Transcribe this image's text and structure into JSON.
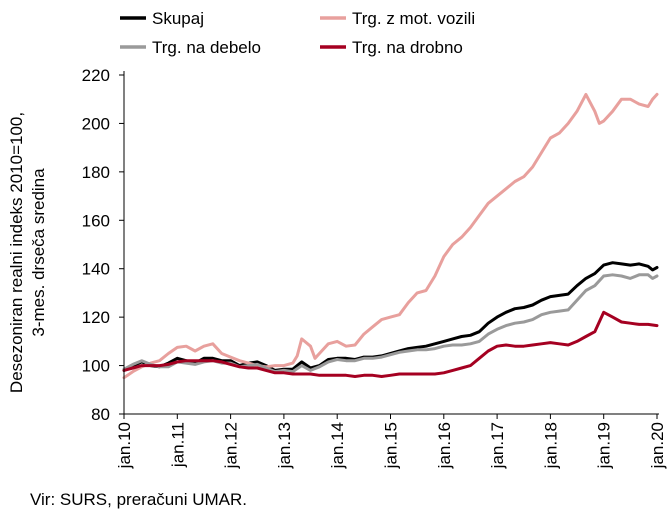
{
  "chart_data": {
    "type": "line",
    "ylabel_lines": [
      "Desezoniran realni indeks 2010=100,",
      "3-mes. drseča sredina"
    ],
    "ylim": [
      80,
      220
    ],
    "yticks": [
      80,
      100,
      120,
      140,
      160,
      180,
      200,
      220
    ],
    "xlim": [
      0,
      120
    ],
    "xticks": [
      {
        "label": "jan.10",
        "x": 0
      },
      {
        "label": "jan.11",
        "x": 12
      },
      {
        "label": "jan.12",
        "x": 24
      },
      {
        "label": "jan.13",
        "x": 36
      },
      {
        "label": "jan.14",
        "x": 48
      },
      {
        "label": "jan.15",
        "x": 60
      },
      {
        "label": "jan.16",
        "x": 72
      },
      {
        "label": "jan.17",
        "x": 84
      },
      {
        "label": "jan.18",
        "x": 96
      },
      {
        "label": "jan.19",
        "x": 108
      },
      {
        "label": "jan.20",
        "x": 120
      }
    ],
    "legend_position": "top",
    "series": [
      {
        "name": "Skupaj",
        "color": "#000000",
        "width": 3,
        "points": [
          [
            0,
            98
          ],
          [
            2,
            100
          ],
          [
            4,
            101.5
          ],
          [
            6,
            100
          ],
          [
            8,
            99.5
          ],
          [
            10,
            101
          ],
          [
            12,
            103
          ],
          [
            14,
            102
          ],
          [
            16,
            101
          ],
          [
            18,
            103
          ],
          [
            20,
            103
          ],
          [
            22,
            102
          ],
          [
            24,
            102
          ],
          [
            26,
            100
          ],
          [
            28,
            101
          ],
          [
            30,
            101.5
          ],
          [
            32,
            100
          ],
          [
            34,
            98
          ],
          [
            36,
            98.5
          ],
          [
            38,
            98.5
          ],
          [
            40,
            101.5
          ],
          [
            42,
            99
          ],
          [
            44,
            100
          ],
          [
            46,
            102.5
          ],
          [
            48,
            103
          ],
          [
            50,
            103
          ],
          [
            52,
            102.5
          ],
          [
            54,
            103.5
          ],
          [
            56,
            103.5
          ],
          [
            58,
            104
          ],
          [
            60,
            105
          ],
          [
            62,
            106
          ],
          [
            64,
            107
          ],
          [
            66,
            107.5
          ],
          [
            68,
            108
          ],
          [
            70,
            109
          ],
          [
            72,
            110
          ],
          [
            74,
            111
          ],
          [
            76,
            112
          ],
          [
            78,
            112.5
          ],
          [
            80,
            114
          ],
          [
            82,
            117.5
          ],
          [
            84,
            120
          ],
          [
            86,
            122
          ],
          [
            88,
            123.5
          ],
          [
            90,
            124
          ],
          [
            92,
            125
          ],
          [
            94,
            127
          ],
          [
            96,
            128.5
          ],
          [
            98,
            129
          ],
          [
            100,
            129.5
          ],
          [
            102,
            133
          ],
          [
            104,
            136
          ],
          [
            106,
            138
          ],
          [
            108,
            141.5
          ],
          [
            110,
            142.5
          ],
          [
            112,
            142
          ],
          [
            114,
            141.5
          ],
          [
            116,
            142
          ],
          [
            118,
            141
          ],
          [
            119,
            139.5
          ],
          [
            120,
            140.5
          ]
        ]
      },
      {
        "name": "Trg. z mot. vozili",
        "color": "#e8a09d",
        "width": 3,
        "points": [
          [
            0,
            95
          ],
          [
            2,
            97.5
          ],
          [
            4,
            99.5
          ],
          [
            6,
            101
          ],
          [
            8,
            102
          ],
          [
            10,
            105
          ],
          [
            12,
            107.5
          ],
          [
            14,
            108
          ],
          [
            16,
            106
          ],
          [
            18,
            108
          ],
          [
            20,
            109
          ],
          [
            22,
            105
          ],
          [
            24,
            103.5
          ],
          [
            26,
            102
          ],
          [
            28,
            101
          ],
          [
            30,
            100
          ],
          [
            32,
            99.5
          ],
          [
            34,
            100
          ],
          [
            36,
            100
          ],
          [
            38,
            101
          ],
          [
            39,
            104
          ],
          [
            40,
            111
          ],
          [
            42,
            108
          ],
          [
            43,
            103
          ],
          [
            44,
            105
          ],
          [
            46,
            109
          ],
          [
            48,
            110
          ],
          [
            50,
            108
          ],
          [
            52,
            108.5
          ],
          [
            54,
            113
          ],
          [
            56,
            116
          ],
          [
            58,
            119
          ],
          [
            60,
            120
          ],
          [
            62,
            121
          ],
          [
            64,
            126
          ],
          [
            66,
            130
          ],
          [
            68,
            131
          ],
          [
            70,
            137
          ],
          [
            72,
            145
          ],
          [
            74,
            150
          ],
          [
            76,
            153
          ],
          [
            78,
            157
          ],
          [
            80,
            162
          ],
          [
            82,
            167
          ],
          [
            84,
            170
          ],
          [
            86,
            173
          ],
          [
            88,
            176
          ],
          [
            90,
            178
          ],
          [
            92,
            182
          ],
          [
            94,
            188
          ],
          [
            96,
            194
          ],
          [
            98,
            196
          ],
          [
            100,
            200
          ],
          [
            102,
            205
          ],
          [
            104,
            212
          ],
          [
            106,
            205
          ],
          [
            107,
            200
          ],
          [
            108,
            201
          ],
          [
            110,
            205
          ],
          [
            112,
            210
          ],
          [
            114,
            210
          ],
          [
            116,
            208
          ],
          [
            118,
            207
          ],
          [
            119,
            210
          ],
          [
            120,
            212
          ]
        ]
      },
      {
        "name": "Trg. na debelo",
        "color": "#9a9a9a",
        "width": 3,
        "points": [
          [
            0,
            98.5
          ],
          [
            2,
            100.5
          ],
          [
            4,
            102
          ],
          [
            6,
            100.5
          ],
          [
            8,
            99.5
          ],
          [
            10,
            99.5
          ],
          [
            12,
            101.5
          ],
          [
            14,
            101
          ],
          [
            16,
            100.5
          ],
          [
            18,
            101.5
          ],
          [
            20,
            102
          ],
          [
            22,
            101
          ],
          [
            24,
            101
          ],
          [
            26,
            99.5
          ],
          [
            28,
            100
          ],
          [
            30,
            100.5
          ],
          [
            32,
            99
          ],
          [
            34,
            97.5
          ],
          [
            36,
            98
          ],
          [
            38,
            97.5
          ],
          [
            40,
            100
          ],
          [
            42,
            98
          ],
          [
            44,
            99.5
          ],
          [
            46,
            101.5
          ],
          [
            48,
            102.5
          ],
          [
            50,
            102
          ],
          [
            52,
            102
          ],
          [
            54,
            103
          ],
          [
            56,
            103
          ],
          [
            58,
            103.5
          ],
          [
            60,
            104.5
          ],
          [
            62,
            105.5
          ],
          [
            64,
            106
          ],
          [
            66,
            106.5
          ],
          [
            68,
            106.5
          ],
          [
            70,
            107
          ],
          [
            72,
            108
          ],
          [
            74,
            108.5
          ],
          [
            76,
            108.5
          ],
          [
            78,
            109
          ],
          [
            80,
            110
          ],
          [
            82,
            113
          ],
          [
            84,
            115
          ],
          [
            86,
            116.5
          ],
          [
            88,
            117.5
          ],
          [
            90,
            118
          ],
          [
            92,
            119
          ],
          [
            94,
            121
          ],
          [
            96,
            122
          ],
          [
            98,
            122.5
          ],
          [
            100,
            123
          ],
          [
            102,
            127
          ],
          [
            104,
            131
          ],
          [
            106,
            133
          ],
          [
            108,
            137
          ],
          [
            110,
            137.5
          ],
          [
            112,
            137
          ],
          [
            114,
            136
          ],
          [
            116,
            137.5
          ],
          [
            118,
            137.5
          ],
          [
            119,
            136
          ],
          [
            120,
            137
          ]
        ]
      },
      {
        "name": "Trg. na drobno",
        "color": "#a50021",
        "width": 3,
        "points": [
          [
            0,
            98
          ],
          [
            2,
            99
          ],
          [
            4,
            100
          ],
          [
            6,
            100
          ],
          [
            8,
            100
          ],
          [
            10,
            100.5
          ],
          [
            12,
            101.5
          ],
          [
            14,
            102
          ],
          [
            16,
            102
          ],
          [
            18,
            102
          ],
          [
            20,
            102
          ],
          [
            22,
            101.5
          ],
          [
            24,
            100.5
          ],
          [
            26,
            99.5
          ],
          [
            28,
            99
          ],
          [
            30,
            99
          ],
          [
            32,
            98
          ],
          [
            34,
            97
          ],
          [
            36,
            97
          ],
          [
            38,
            96.5
          ],
          [
            40,
            96.5
          ],
          [
            42,
            96.5
          ],
          [
            44,
            96
          ],
          [
            46,
            96
          ],
          [
            48,
            96
          ],
          [
            50,
            96
          ],
          [
            52,
            95.5
          ],
          [
            54,
            96
          ],
          [
            56,
            96
          ],
          [
            58,
            95.5
          ],
          [
            60,
            96
          ],
          [
            62,
            96.5
          ],
          [
            64,
            96.5
          ],
          [
            66,
            96.5
          ],
          [
            68,
            96.5
          ],
          [
            70,
            96.5
          ],
          [
            72,
            97
          ],
          [
            74,
            98
          ],
          [
            76,
            99
          ],
          [
            78,
            100
          ],
          [
            80,
            103
          ],
          [
            82,
            106
          ],
          [
            84,
            108
          ],
          [
            86,
            108.5
          ],
          [
            88,
            108
          ],
          [
            90,
            108
          ],
          [
            92,
            108.5
          ],
          [
            94,
            109
          ],
          [
            96,
            109.5
          ],
          [
            98,
            109
          ],
          [
            100,
            108.5
          ],
          [
            102,
            110
          ],
          [
            104,
            112
          ],
          [
            106,
            114
          ],
          [
            108,
            122
          ],
          [
            110,
            120
          ],
          [
            112,
            118
          ],
          [
            114,
            117.5
          ],
          [
            116,
            117
          ],
          [
            118,
            117
          ],
          [
            120,
            116.5
          ]
        ]
      }
    ]
  },
  "source": "Vir: SURS, preračuni UMAR."
}
